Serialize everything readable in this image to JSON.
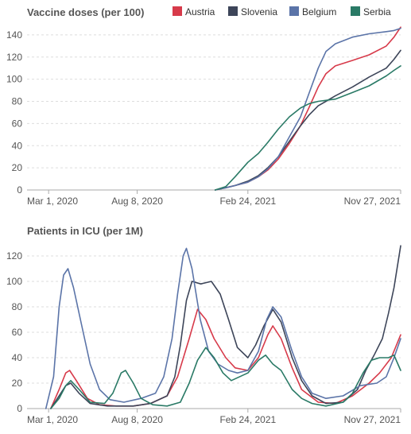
{
  "legend": [
    {
      "name": "Austria",
      "color": "#d73a4a"
    },
    {
      "name": "Slovenia",
      "color": "#3d4559"
    },
    {
      "name": "Belgium",
      "color": "#5b74a8"
    },
    {
      "name": "Serbia",
      "color": "#2a7a66"
    }
  ],
  "chart_data": [
    {
      "type": "line",
      "title": "Vaccine doses (per 100)",
      "xlabel": "",
      "ylabel": "",
      "x_tick_labels": [
        "Mar 1, 2020",
        "Aug 8, 2020",
        "Feb 24, 2021",
        "Nov 27, 2021"
      ],
      "y_ticks": [
        0,
        20,
        40,
        60,
        80,
        100,
        120,
        140
      ],
      "ylim": [
        0,
        150
      ],
      "xlim": [
        "2020-01-22",
        "2021-11-27"
      ],
      "grid": true,
      "legend_position": "top-right",
      "series": [
        {
          "name": "Austria",
          "color": "#d73a4a",
          "points": [
            [
              "2020-12-27",
              0
            ],
            [
              "2021-01-15",
              2
            ],
            [
              "2021-02-01",
              4
            ],
            [
              "2021-02-24",
              7
            ],
            [
              "2021-03-15",
              12
            ],
            [
              "2021-04-01",
              18
            ],
            [
              "2021-04-20",
              28
            ],
            [
              "2021-05-10",
              42
            ],
            [
              "2021-05-30",
              58
            ],
            [
              "2021-06-15",
              75
            ],
            [
              "2021-07-01",
              93
            ],
            [
              "2021-07-15",
              105
            ],
            [
              "2021-08-01",
              112
            ],
            [
              "2021-09-01",
              117
            ],
            [
              "2021-10-01",
              122
            ],
            [
              "2021-11-01",
              130
            ],
            [
              "2021-11-15",
              138
            ],
            [
              "2021-11-27",
              147
            ]
          ]
        },
        {
          "name": "Slovenia",
          "color": "#3d4559",
          "points": [
            [
              "2020-12-27",
              0
            ],
            [
              "2021-01-15",
              2
            ],
            [
              "2021-02-01",
              4
            ],
            [
              "2021-02-24",
              8
            ],
            [
              "2021-03-15",
              13
            ],
            [
              "2021-04-01",
              20
            ],
            [
              "2021-04-20",
              30
            ],
            [
              "2021-05-10",
              44
            ],
            [
              "2021-05-30",
              58
            ],
            [
              "2021-06-15",
              68
            ],
            [
              "2021-07-01",
              76
            ],
            [
              "2021-07-15",
              80
            ],
            [
              "2021-08-01",
              85
            ],
            [
              "2021-09-01",
              93
            ],
            [
              "2021-10-01",
              102
            ],
            [
              "2021-11-01",
              110
            ],
            [
              "2021-11-15",
              118
            ],
            [
              "2021-11-27",
              126
            ]
          ]
        },
        {
          "name": "Belgium",
          "color": "#5b74a8",
          "points": [
            [
              "2020-12-27",
              0
            ],
            [
              "2021-01-15",
              2
            ],
            [
              "2021-02-01",
              4
            ],
            [
              "2021-02-24",
              7
            ],
            [
              "2021-03-15",
              12
            ],
            [
              "2021-04-01",
              19
            ],
            [
              "2021-04-20",
              30
            ],
            [
              "2021-05-10",
              48
            ],
            [
              "2021-05-30",
              66
            ],
            [
              "2021-06-15",
              88
            ],
            [
              "2021-07-01",
              110
            ],
            [
              "2021-07-15",
              125
            ],
            [
              "2021-08-01",
              132
            ],
            [
              "2021-09-01",
              138
            ],
            [
              "2021-10-01",
              141
            ],
            [
              "2021-11-01",
              143
            ],
            [
              "2021-11-15",
              144
            ],
            [
              "2021-11-27",
              146
            ]
          ]
        },
        {
          "name": "Serbia",
          "color": "#2a7a66",
          "points": [
            [
              "2020-12-27",
              0
            ],
            [
              "2021-01-15",
              3
            ],
            [
              "2021-02-01",
              12
            ],
            [
              "2021-02-24",
              25
            ],
            [
              "2021-03-15",
              33
            ],
            [
              "2021-04-01",
              43
            ],
            [
              "2021-04-20",
              55
            ],
            [
              "2021-05-10",
              66
            ],
            [
              "2021-05-30",
              74
            ],
            [
              "2021-06-15",
              78
            ],
            [
              "2021-07-01",
              80
            ],
            [
              "2021-08-01",
              82
            ],
            [
              "2021-09-01",
              88
            ],
            [
              "2021-10-01",
              94
            ],
            [
              "2021-11-01",
              103
            ],
            [
              "2021-11-15",
              108
            ],
            [
              "2021-11-27",
              112
            ]
          ]
        }
      ]
    },
    {
      "type": "line",
      "title": "Patients in ICU (per 1M)",
      "xlabel": "",
      "ylabel": "",
      "x_tick_labels": [
        "Mar 1, 2020",
        "Aug 8, 2020",
        "Feb 24, 2021",
        "Nov 27, 2021"
      ],
      "y_ticks": [
        0,
        20,
        40,
        60,
        80,
        100,
        120
      ],
      "ylim": [
        0,
        130
      ],
      "xlim": [
        "2020-01-22",
        "2021-11-27"
      ],
      "grid": true,
      "series": [
        {
          "name": "Austria",
          "color": "#d73a4a",
          "points": [
            [
              "2020-03-05",
              0
            ],
            [
              "2020-03-20",
              15
            ],
            [
              "2020-04-01",
              28
            ],
            [
              "2020-04-08",
              30
            ],
            [
              "2020-04-20",
              22
            ],
            [
              "2020-05-10",
              8
            ],
            [
              "2020-06-01",
              3
            ],
            [
              "2020-07-01",
              2
            ],
            [
              "2020-08-01",
              2
            ],
            [
              "2020-09-01",
              4
            ],
            [
              "2020-10-01",
              10
            ],
            [
              "2020-10-20",
              25
            ],
            [
              "2020-11-10",
              55
            ],
            [
              "2020-11-25",
              78
            ],
            [
              "2020-12-10",
              70
            ],
            [
              "2020-12-25",
              55
            ],
            [
              "2021-01-15",
              40
            ],
            [
              "2021-02-01",
              32
            ],
            [
              "2021-02-24",
              30
            ],
            [
              "2021-03-15",
              40
            ],
            [
              "2021-04-01",
              58
            ],
            [
              "2021-04-10",
              65
            ],
            [
              "2021-04-25",
              55
            ],
            [
              "2021-05-15",
              32
            ],
            [
              "2021-06-01",
              15
            ],
            [
              "2021-07-01",
              5
            ],
            [
              "2021-08-01",
              4
            ],
            [
              "2021-09-01",
              10
            ],
            [
              "2021-10-01",
              20
            ],
            [
              "2021-10-20",
              28
            ],
            [
              "2021-11-10",
              40
            ],
            [
              "2021-11-27",
              58
            ]
          ]
        },
        {
          "name": "Slovenia",
          "color": "#3d4559",
          "points": [
            [
              "2020-03-05",
              0
            ],
            [
              "2020-03-20",
              10
            ],
            [
              "2020-04-01",
              18
            ],
            [
              "2020-04-10",
              20
            ],
            [
              "2020-04-25",
              12
            ],
            [
              "2020-05-15",
              4
            ],
            [
              "2020-06-15",
              2
            ],
            [
              "2020-08-01",
              2
            ],
            [
              "2020-09-01",
              4
            ],
            [
              "2020-10-01",
              10
            ],
            [
              "2020-10-15",
              25
            ],
            [
              "2020-10-25",
              50
            ],
            [
              "2020-11-05",
              85
            ],
            [
              "2020-11-15",
              100
            ],
            [
              "2020-12-01",
              98
            ],
            [
              "2020-12-20",
              100
            ],
            [
              "2021-01-05",
              90
            ],
            [
              "2021-01-20",
              70
            ],
            [
              "2021-02-05",
              48
            ],
            [
              "2021-02-24",
              40
            ],
            [
              "2021-03-10",
              50
            ],
            [
              "2021-03-25",
              65
            ],
            [
              "2021-04-10",
              78
            ],
            [
              "2021-04-25",
              68
            ],
            [
              "2021-05-15",
              40
            ],
            [
              "2021-06-01",
              22
            ],
            [
              "2021-06-20",
              10
            ],
            [
              "2021-07-15",
              4
            ],
            [
              "2021-08-15",
              5
            ],
            [
              "2021-09-10",
              15
            ],
            [
              "2021-09-25",
              30
            ],
            [
              "2021-10-10",
              42
            ],
            [
              "2021-10-25",
              55
            ],
            [
              "2021-11-05",
              75
            ],
            [
              "2021-11-15",
              95
            ],
            [
              "2021-11-27",
              128
            ]
          ]
        },
        {
          "name": "Belgium",
          "color": "#5b74a8",
          "points": [
            [
              "2020-02-25",
              0
            ],
            [
              "2020-03-10",
              25
            ],
            [
              "2020-03-20",
              80
            ],
            [
              "2020-03-28",
              105
            ],
            [
              "2020-04-05",
              110
            ],
            [
              "2020-04-15",
              95
            ],
            [
              "2020-04-30",
              65
            ],
            [
              "2020-05-15",
              35
            ],
            [
              "2020-06-01",
              15
            ],
            [
              "2020-06-20",
              7
            ],
            [
              "2020-07-15",
              5
            ],
            [
              "2020-08-15",
              8
            ],
            [
              "2020-09-10",
              12
            ],
            [
              "2020-09-25",
              25
            ],
            [
              "2020-10-10",
              55
            ],
            [
              "2020-10-20",
              90
            ],
            [
              "2020-10-30",
              120
            ],
            [
              "2020-11-05",
              126
            ],
            [
              "2020-11-15",
              110
            ],
            [
              "2020-11-30",
              70
            ],
            [
              "2020-12-15",
              45
            ],
            [
              "2021-01-01",
              35
            ],
            [
              "2021-01-20",
              30
            ],
            [
              "2021-02-05",
              28
            ],
            [
              "2021-02-24",
              30
            ],
            [
              "2021-03-15",
              45
            ],
            [
              "2021-03-30",
              70
            ],
            [
              "2021-04-10",
              80
            ],
            [
              "2021-04-25",
              72
            ],
            [
              "2021-05-15",
              45
            ],
            [
              "2021-06-01",
              25
            ],
            [
              "2021-06-20",
              12
            ],
            [
              "2021-07-15",
              8
            ],
            [
              "2021-08-15",
              10
            ],
            [
              "2021-09-15",
              18
            ],
            [
              "2021-10-15",
              20
            ],
            [
              "2021-11-01",
              25
            ],
            [
              "2021-11-15",
              40
            ],
            [
              "2021-11-27",
              55
            ]
          ]
        },
        {
          "name": "Serbia",
          "color": "#2a7a66",
          "points": [
            [
              "2020-03-05",
              0
            ],
            [
              "2020-03-20",
              8
            ],
            [
              "2020-04-01",
              18
            ],
            [
              "2020-04-10",
              22
            ],
            [
              "2020-04-25",
              15
            ],
            [
              "2020-05-15",
              5
            ],
            [
              "2020-06-10",
              4
            ],
            [
              "2020-06-25",
              12
            ],
            [
              "2020-07-10",
              28
            ],
            [
              "2020-07-18",
              30
            ],
            [
              "2020-08-01",
              20
            ],
            [
              "2020-08-15",
              8
            ],
            [
              "2020-09-05",
              3
            ],
            [
              "2020-10-01",
              2
            ],
            [
              "2020-10-25",
              5
            ],
            [
              "2020-11-10",
              20
            ],
            [
              "2020-11-25",
              38
            ],
            [
              "2020-12-10",
              48
            ],
            [
              "2020-12-25",
              40
            ],
            [
              "2021-01-10",
              28
            ],
            [
              "2021-01-25",
              22
            ],
            [
              "2021-02-24",
              28
            ],
            [
              "2021-03-15",
              38
            ],
            [
              "2021-03-28",
              42
            ],
            [
              "2021-04-10",
              35
            ],
            [
              "2021-04-25",
              30
            ],
            [
              "2021-05-15",
              15
            ],
            [
              "2021-06-01",
              8
            ],
            [
              "2021-06-20",
              4
            ],
            [
              "2021-07-15",
              2
            ],
            [
              "2021-08-15",
              5
            ],
            [
              "2021-09-01",
              12
            ],
            [
              "2021-09-20",
              28
            ],
            [
              "2021-10-05",
              38
            ],
            [
              "2021-10-20",
              40
            ],
            [
              "2021-11-05",
              40
            ],
            [
              "2021-11-15",
              42
            ],
            [
              "2021-11-22",
              35
            ],
            [
              "2021-11-27",
              30
            ]
          ]
        }
      ]
    }
  ]
}
